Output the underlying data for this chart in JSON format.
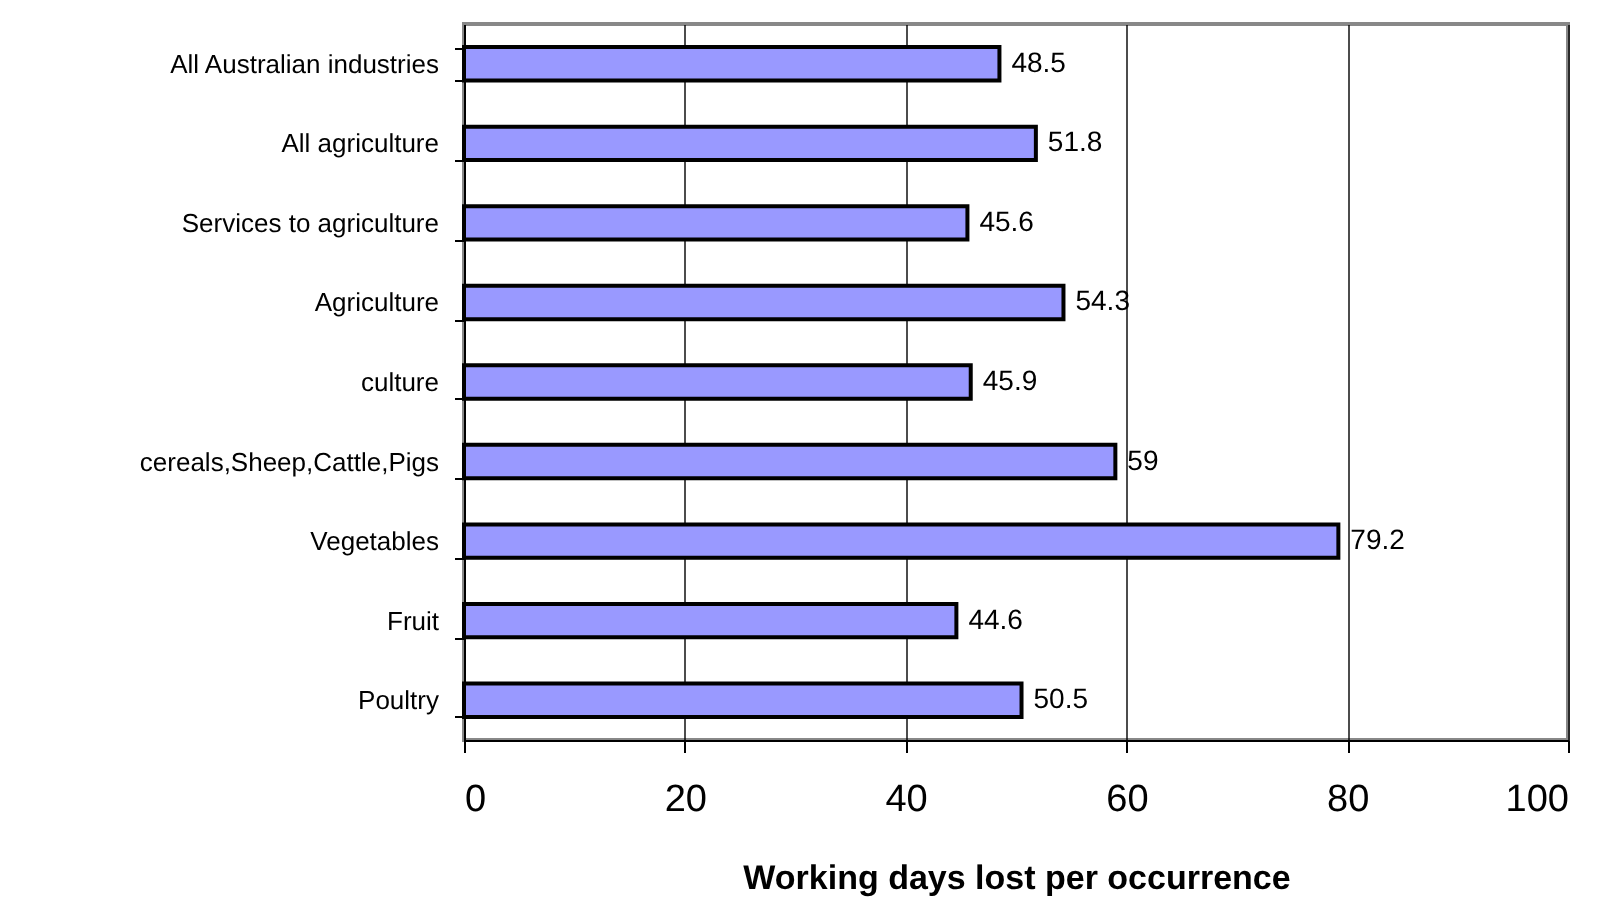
{
  "chart_data": {
    "type": "bar",
    "orientation": "horizontal",
    "xlabel": "Working days lost per occurrence",
    "categories": [
      "All Australian industries",
      "All agriculture",
      "Services to agriculture",
      "Agriculture",
      "culture",
      "cereals,Sheep,Cattle,Pigs",
      "Vegetables",
      "Fruit",
      "Poultry"
    ],
    "values": [
      48.5,
      51.8,
      45.6,
      54.3,
      45.9,
      59,
      79.2,
      44.6,
      50.5
    ],
    "color": "#9999ff",
    "xlim": [
      0,
      100
    ],
    "xticks": [
      0,
      20,
      40,
      60,
      80,
      100
    ],
    "grid": "x",
    "data_labels": true
  }
}
